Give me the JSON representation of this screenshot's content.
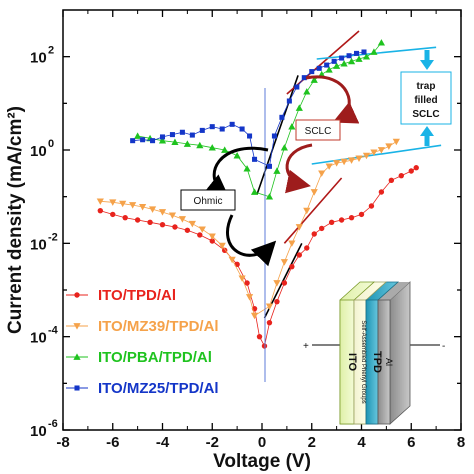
{
  "chart_data": {
    "type": "scatter",
    "xlabel": "Voltage (V)",
    "ylabel": "Current density (mA/cm²)",
    "xlim": [
      -8,
      8
    ],
    "ylim_log10": [
      -6,
      3
    ],
    "y_scale": "log",
    "x_ticks": [
      -8,
      -6,
      -4,
      -2,
      0,
      2,
      4,
      6,
      8
    ],
    "x_tick_labels": [
      "-8",
      "-6",
      "-4",
      "-2",
      "0",
      "2",
      "4",
      "6",
      "8"
    ],
    "y_ticks": [
      {
        "base": "10",
        "exp": "-6",
        "value": -6
      },
      {
        "base": "10",
        "exp": "-4",
        "value": -4
      },
      {
        "base": "10",
        "exp": "-2",
        "value": -2
      },
      {
        "base": "10",
        "exp": "0",
        "value": 0
      },
      {
        "base": "10",
        "exp": "2",
        "value": 2
      }
    ],
    "legend_position": "bottom-left",
    "series": [
      {
        "name": "ITO/TPD/Al",
        "color": "#e8231d",
        "marker": "circle",
        "points": [
          [
            -6.5,
            -1.3
          ],
          [
            -6.0,
            -1.38
          ],
          [
            -5.5,
            -1.45
          ],
          [
            -5.0,
            -1.5
          ],
          [
            -4.5,
            -1.55
          ],
          [
            -4.0,
            -1.6
          ],
          [
            -3.5,
            -1.65
          ],
          [
            -3.0,
            -1.72
          ],
          [
            -2.5,
            -1.82
          ],
          [
            -2.0,
            -1.95
          ],
          [
            -1.5,
            -2.15
          ],
          [
            -1.0,
            -2.45
          ],
          [
            -0.6,
            -2.85
          ],
          [
            -0.3,
            -3.4
          ],
          [
            -0.1,
            -4.0
          ],
          [
            0.1,
            -4.2
          ],
          [
            0.3,
            -3.7
          ],
          [
            0.6,
            -3.25
          ],
          [
            0.9,
            -2.85
          ],
          [
            1.2,
            -2.5
          ],
          [
            1.5,
            -2.25
          ],
          [
            1.8,
            -2.1
          ],
          [
            2.1,
            -1.8
          ],
          [
            2.4,
            -1.68
          ],
          [
            2.8,
            -1.55
          ],
          [
            3.2,
            -1.5
          ],
          [
            3.6,
            -1.45
          ],
          [
            4.0,
            -1.38
          ],
          [
            4.4,
            -1.2
          ],
          [
            4.8,
            -0.9
          ],
          [
            5.2,
            -0.65
          ],
          [
            5.6,
            -0.55
          ],
          [
            6.0,
            -0.45
          ],
          [
            6.2,
            -0.38
          ]
        ]
      },
      {
        "name": "ITO/MZ39/TPD/Al",
        "color": "#f5a24a",
        "marker": "triangle-down",
        "points": [
          [
            -6.5,
            -1.1
          ],
          [
            -6.0,
            -1.12
          ],
          [
            -5.6,
            -1.15
          ],
          [
            -5.2,
            -1.18
          ],
          [
            -4.8,
            -1.22
          ],
          [
            -4.4,
            -1.27
          ],
          [
            -4.0,
            -1.33
          ],
          [
            -3.6,
            -1.4
          ],
          [
            -3.2,
            -1.48
          ],
          [
            -2.8,
            -1.58
          ],
          [
            -2.4,
            -1.7
          ],
          [
            -2.0,
            -1.85
          ],
          [
            -1.6,
            -2.05
          ],
          [
            -1.2,
            -2.35
          ],
          [
            -0.8,
            -2.75
          ],
          [
            -0.5,
            -3.15
          ],
          [
            -0.3,
            -3.55
          ],
          [
            0.3,
            -3.35
          ],
          [
            0.6,
            -2.85
          ],
          [
            0.9,
            -2.4
          ],
          [
            1.2,
            -2.0
          ],
          [
            1.5,
            -1.65
          ],
          [
            1.8,
            -1.3
          ],
          [
            2.1,
            -0.9
          ],
          [
            2.4,
            -0.5
          ],
          [
            2.7,
            -0.35
          ],
          [
            3.0,
            -0.28
          ],
          [
            3.3,
            -0.25
          ],
          [
            3.6,
            -0.22
          ],
          [
            3.9,
            -0.18
          ],
          [
            4.2,
            -0.12
          ],
          [
            4.5,
            -0.05
          ],
          [
            4.8,
            0.0
          ],
          [
            5.1,
            0.08
          ],
          [
            5.4,
            0.18
          ]
        ]
      },
      {
        "name": "ITO/PBA/TPD/Al",
        "color": "#1fc31f",
        "marker": "triangle-up",
        "points": [
          [
            -5.0,
            0.3
          ],
          [
            -4.5,
            0.25
          ],
          [
            -4.0,
            0.2
          ],
          [
            -3.5,
            0.17
          ],
          [
            -3.0,
            0.13
          ],
          [
            -2.5,
            0.1
          ],
          [
            -2.0,
            0.05
          ],
          [
            -1.5,
            0.0
          ],
          [
            -1.0,
            -0.12
          ],
          [
            -0.6,
            -0.4
          ],
          [
            -0.3,
            -0.9
          ],
          [
            0.3,
            -1.0
          ],
          [
            0.6,
            -0.45
          ],
          [
            0.9,
            0.05
          ],
          [
            1.2,
            0.5
          ],
          [
            1.5,
            0.9
          ],
          [
            1.8,
            1.25
          ],
          [
            2.1,
            1.5
          ],
          [
            2.4,
            1.62
          ],
          [
            2.7,
            1.72
          ],
          [
            3.0,
            1.8
          ],
          [
            3.3,
            1.85
          ],
          [
            3.6,
            1.9
          ],
          [
            3.9,
            1.95
          ],
          [
            4.2,
            2.0
          ],
          [
            4.5,
            2.1
          ],
          [
            4.8,
            2.3
          ]
        ]
      },
      {
        "name": "ITO/MZ25/TPD/Al",
        "color": "#1436c8",
        "marker": "square",
        "points": [
          [
            -5.2,
            0.2
          ],
          [
            -4.8,
            0.22
          ],
          [
            -4.4,
            0.2
          ],
          [
            -4.0,
            0.28
          ],
          [
            -3.6,
            0.33
          ],
          [
            -3.2,
            0.38
          ],
          [
            -2.8,
            0.32
          ],
          [
            -2.4,
            0.42
          ],
          [
            -2.0,
            0.5
          ],
          [
            -1.6,
            0.45
          ],
          [
            -1.2,
            0.55
          ],
          [
            -0.8,
            0.45
          ],
          [
            -0.5,
            0.3
          ],
          [
            -0.3,
            -0.2
          ],
          [
            0.3,
            -0.35
          ],
          [
            0.5,
            0.3
          ],
          [
            0.8,
            0.7
          ],
          [
            1.1,
            1.05
          ],
          [
            1.4,
            1.35
          ],
          [
            1.7,
            1.55
          ],
          [
            2.0,
            1.68
          ],
          [
            2.3,
            1.75
          ],
          [
            2.6,
            1.82
          ],
          [
            2.9,
            1.9
          ],
          [
            3.2,
            1.97
          ],
          [
            3.5,
            2.02
          ],
          [
            3.8,
            2.07
          ],
          [
            4.1,
            2.1
          ]
        ]
      }
    ],
    "fit_lines": [
      {
        "color": "#000000",
        "from": [
          0.1,
          -3.6
        ],
        "to": [
          1.6,
          -2.0
        ]
      },
      {
        "color": "#000000",
        "from": [
          -0.2,
          -0.95
        ],
        "to": [
          1.45,
          1.6
        ]
      },
      {
        "color": "#b01818",
        "from": [
          0.9,
          -2.0
        ],
        "to": [
          3.2,
          -0.6
        ]
      },
      {
        "color": "#b01818",
        "from": [
          1.0,
          1.2
        ],
        "to": [
          3.9,
          2.55
        ]
      },
      {
        "color": "#19b3e6",
        "from": [
          2.0,
          -0.3
        ],
        "to": [
          7.2,
          0.1
        ]
      },
      {
        "color": "#19b3e6",
        "from": [
          2.2,
          1.95
        ],
        "to": [
          7.0,
          2.2
        ]
      }
    ],
    "annotations": {
      "ohmic": "Ohmic",
      "sclc": "SCLC",
      "trap_line1": "trap",
      "trap_line2": "filled",
      "trap_line3": "SCLC"
    },
    "inset": {
      "layers": [
        "ITO",
        "Self-Assembled Phenyl Groups",
        "TPD",
        "Al"
      ],
      "plus": "+",
      "minus": "-"
    }
  }
}
